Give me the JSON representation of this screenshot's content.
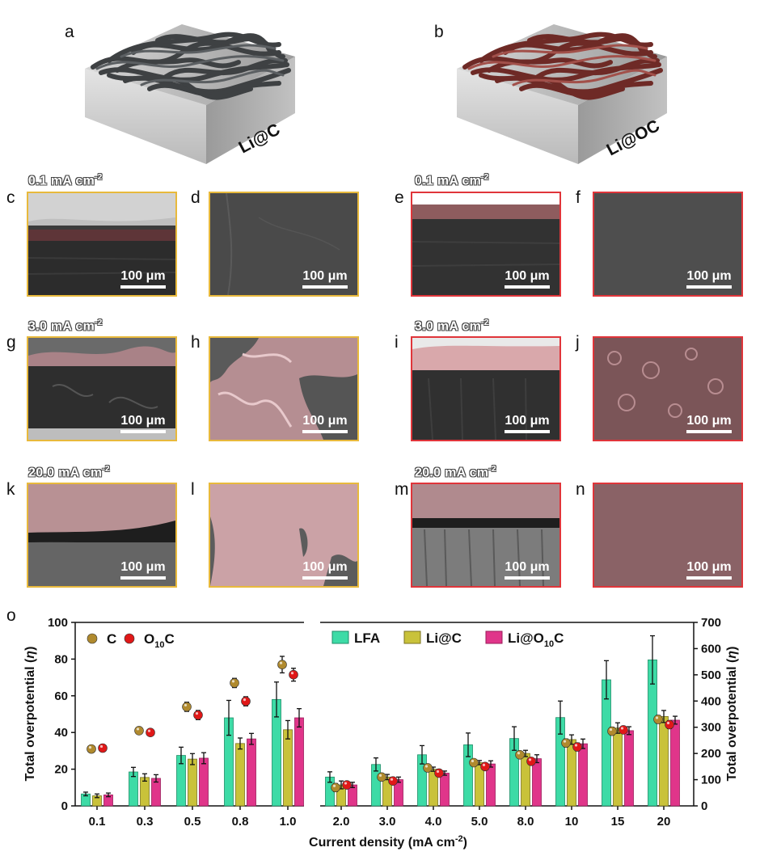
{
  "panels": {
    "a": {
      "letter": "a",
      "label": "Li@C"
    },
    "b": {
      "letter": "b",
      "label": "Li@OC"
    },
    "c": {
      "letter": "c",
      "current": "0.1 mA cm",
      "exp": "-2",
      "scale": "100 μm"
    },
    "d": {
      "letter": "d",
      "scale": "100 μm"
    },
    "e": {
      "letter": "e",
      "current": "0.1 mA cm",
      "exp": "-2",
      "scale": "100 μm"
    },
    "f": {
      "letter": "f",
      "scale": "100 μm"
    },
    "g": {
      "letter": "g",
      "current": "3.0 mA cm",
      "exp": "-2",
      "scale": "100 μm"
    },
    "h": {
      "letter": "h",
      "scale": "100 μm"
    },
    "i": {
      "letter": "i",
      "current": "3.0 mA cm",
      "exp": "-2",
      "scale": "100 μm"
    },
    "j": {
      "letter": "j",
      "scale": "100 μm"
    },
    "k": {
      "letter": "k",
      "current": "20.0 mA cm",
      "exp": "-2",
      "scale": "100 μm"
    },
    "l": {
      "letter": "l",
      "scale": "100 μm"
    },
    "m": {
      "letter": "m",
      "current": "20.0 mA cm",
      "exp": "-2",
      "scale": "100 μm"
    },
    "n": {
      "letter": "n",
      "scale": "100 μm"
    },
    "o": {
      "letter": "o"
    }
  },
  "colors": {
    "C": "#b08a2e",
    "O10C": "#e01818",
    "LFA": "#3ddba6",
    "LiC": "#c9c23a",
    "LiO10C": "#e0358a",
    "yellow_frame": "#e8b93c",
    "red_frame": "#e0353a"
  },
  "chart_data": {
    "type": "bar",
    "xlabel": "Current density (mA cm",
    "xlabel_exp": "-2",
    "xlabel_tail": ")",
    "ylabel_left": "Total overpotential (",
    "ylabel_sym": "η",
    "ylabel_tail": ")",
    "left": {
      "categories": [
        "0.1",
        "0.3",
        "0.5",
        "0.8",
        "1.0"
      ],
      "ylim": [
        0,
        100
      ],
      "yticks": [
        "0",
        "20",
        "40",
        "60",
        "80",
        "100"
      ],
      "series": [
        {
          "name": "LFA",
          "values": [
            6.5,
            18.5,
            27.5,
            48,
            58
          ],
          "err": [
            1,
            2.5,
            4.5,
            9.5,
            9.5
          ]
        },
        {
          "name": "Li@C",
          "values": [
            5.5,
            15.5,
            25.5,
            34,
            41.5
          ],
          "err": [
            1,
            2,
            3,
            3,
            5
          ]
        },
        {
          "name": "Li@O10C",
          "values": [
            6,
            15,
            26,
            36.5,
            48
          ],
          "err": [
            1,
            2,
            3,
            3,
            5
          ]
        }
      ],
      "scatter": [
        {
          "name": "C",
          "values": [
            31,
            41,
            54,
            67,
            77
          ],
          "err": [
            1.5,
            1.5,
            2.5,
            2.5,
            4.5
          ]
        },
        {
          "name": "O10C",
          "values": [
            31.5,
            40,
            49.5,
            57,
            71.5
          ],
          "err": [
            1.5,
            1,
            2.5,
            2.5,
            3.5
          ]
        }
      ]
    },
    "right": {
      "categories": [
        "2.0",
        "3.0",
        "4.0",
        "5.0",
        "8.0",
        "10",
        "15",
        "20"
      ],
      "ylim": [
        0,
        700
      ],
      "yticks": [
        "0",
        "100",
        "200",
        "300",
        "400",
        "500",
        "600",
        "700"
      ],
      "series": [
        {
          "name": "LFA",
          "values": [
            110,
            158,
            195,
            233,
            257,
            337,
            481,
            557
          ],
          "err": [
            20,
            25,
            35,
            45,
            45,
            63,
            73,
            92
          ]
        },
        {
          "name": "Li@C",
          "values": [
            80,
            110,
            140,
            165,
            200,
            253,
            297,
            341
          ],
          "err": [
            15,
            10,
            8,
            8,
            12,
            18,
            20,
            23
          ]
        },
        {
          "name": "Li@O10C",
          "values": [
            80,
            100,
            125,
            160,
            180,
            237,
            287,
            327
          ],
          "err": [
            10,
            10,
            8,
            12,
            15,
            18,
            15,
            15
          ]
        }
      ],
      "scatter": [
        {
          "name": "C",
          "values": [
            70,
            110,
            145,
            165,
            195,
            240,
            285,
            330
          ],
          "err": [
            15,
            10,
            8,
            5,
            10,
            15,
            15,
            15
          ]
        },
        {
          "name": "O10C",
          "values": [
            80,
            95,
            125,
            150,
            170,
            225,
            290,
            310
          ],
          "err": [
            10,
            8,
            8,
            10,
            12,
            15,
            12,
            15
          ]
        }
      ]
    },
    "legend_left": [
      {
        "name": "C"
      },
      {
        "name": "O",
        "sub": "10",
        "tail": "C"
      }
    ],
    "legend_right": [
      {
        "name": "LFA"
      },
      {
        "name": "Li@C"
      },
      {
        "name": "Li@O",
        "sub": "10",
        "tail": "C"
      }
    ]
  }
}
